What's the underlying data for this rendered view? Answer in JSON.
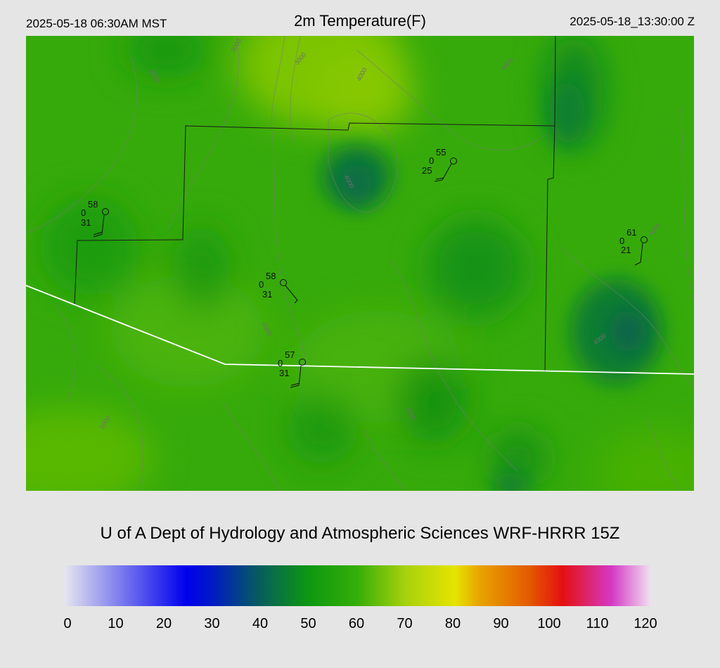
{
  "header": {
    "local_time": "2025-05-18 06:30AM MST",
    "title": "2m Temperature(F)",
    "utc_time": "2025-05-18_13:30:00 Z"
  },
  "credit": "U of A Dept of Hydrology and Atmospheric Sciences WRF-HRRR 15Z",
  "colorbar": {
    "min": 0,
    "max": 120,
    "tick_labels": [
      "0",
      "10",
      "20",
      "30",
      "40",
      "50",
      "60",
      "70",
      "80",
      "90",
      "100",
      "110",
      "120"
    ],
    "stops": [
      {
        "v": 0,
        "c": "#e6e6ef"
      },
      {
        "v": 25,
        "c": "#0000ee"
      },
      {
        "v": 30,
        "c": "#0018c8"
      },
      {
        "v": 40,
        "c": "#075d5d"
      },
      {
        "v": 50,
        "c": "#0d9810"
      },
      {
        "v": 60,
        "c": "#35ae08"
      },
      {
        "v": 70,
        "c": "#a8d20c"
      },
      {
        "v": 80,
        "c": "#e6e400"
      },
      {
        "v": 85,
        "c": "#e8a400"
      },
      {
        "v": 95,
        "c": "#e45c00"
      },
      {
        "v": 102,
        "c": "#e41010"
      },
      {
        "v": 112,
        "c": "#d438c4"
      },
      {
        "v": 120,
        "c": "#f0dff0"
      }
    ]
  },
  "contour_labels": [
    "3000",
    "4000"
  ],
  "stations": [
    {
      "id": "stn-west",
      "temp": "58",
      "mid": "0",
      "dew": "31"
    },
    {
      "id": "stn-north",
      "temp": "55",
      "mid": "0",
      "dew": "25"
    },
    {
      "id": "stn-east",
      "temp": "61",
      "mid": "0",
      "dew": "21"
    },
    {
      "id": "stn-central",
      "temp": "58",
      "mid": "0",
      "dew": "31"
    },
    {
      "id": "stn-south",
      "temp": "57",
      "mid": "0",
      "dew": "31"
    }
  ]
}
